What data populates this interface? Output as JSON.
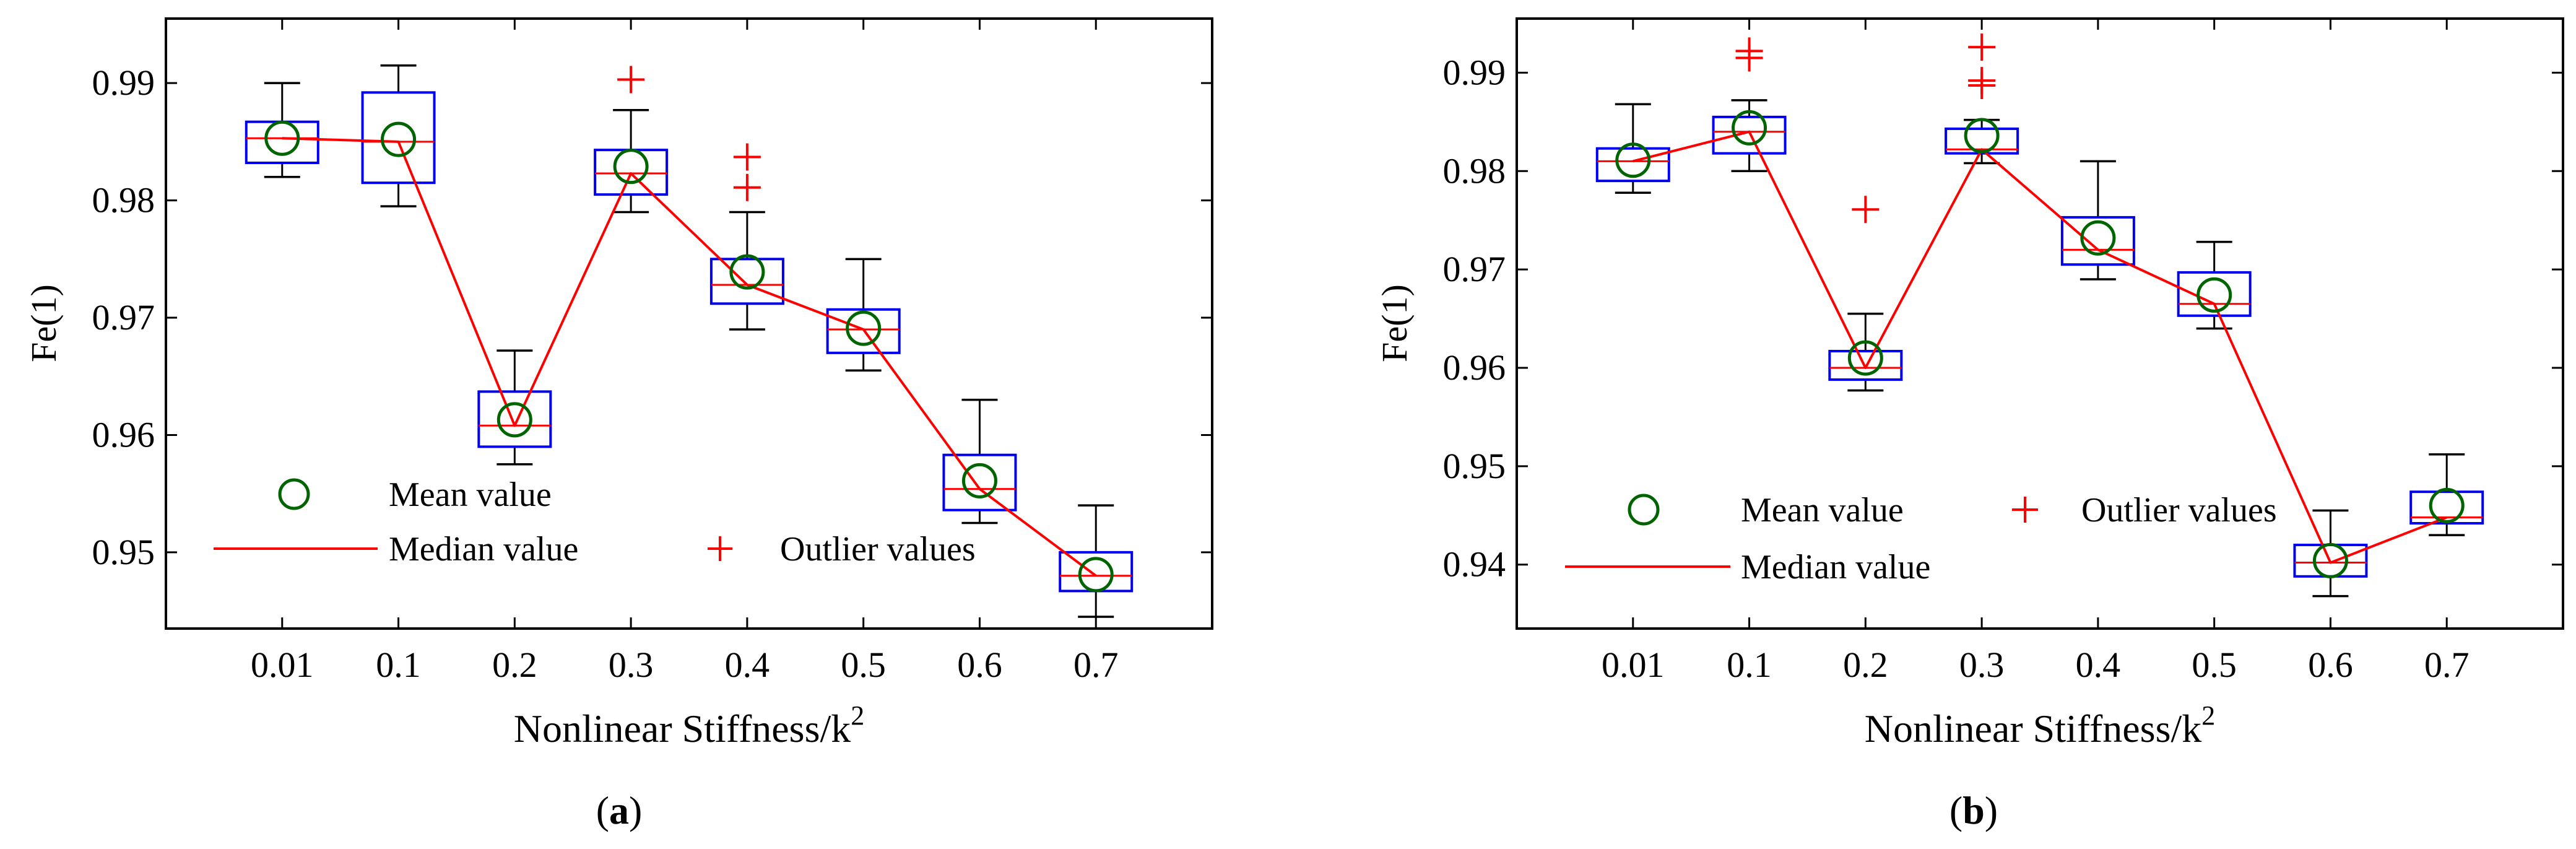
{
  "figure": {
    "panels": [
      {
        "label_open": "(",
        "label_letter": "a",
        "label_close": ")",
        "legend": {
          "mean": "Mean value",
          "median": "Median value",
          "outlier": "Outlier values",
          "placement": "bottom-left"
        }
      },
      {
        "label_open": "(",
        "label_letter": "b",
        "label_close": ")",
        "legend": {
          "mean": "Mean value",
          "median": "Median value",
          "outlier": "Outlier values",
          "placement": "bottom-center"
        }
      }
    ]
  },
  "colors": {
    "box": "#0000ee",
    "whisker": "#000000",
    "median": "#ff0000",
    "mean": "#006400",
    "outlier": "#ff0000",
    "axis": "#000000"
  },
  "chart_data": [
    {
      "type": "box",
      "title": "",
      "xlabel": "Nonlinear Stiffness/k",
      "xlabel_sup": "2",
      "ylabel": "Fe(1)",
      "categories": [
        "0.01",
        "0.1",
        "0.2",
        "0.3",
        "0.4",
        "0.5",
        "0.6",
        "0.7"
      ],
      "ylim": [
        0.9435,
        0.9955
      ],
      "yticks": [
        0.95,
        0.96,
        0.97,
        0.98,
        0.99
      ],
      "ytick_labels": [
        "0.95",
        "0.96",
        "0.97",
        "0.98",
        "0.99"
      ],
      "grid": false,
      "boxes": [
        {
          "whisker_low": 0.982,
          "q1": 0.9832,
          "median": 0.9853,
          "q3": 0.9867,
          "whisker_high": 0.99,
          "mean": 0.9853,
          "outliers": []
        },
        {
          "whisker_low": 0.9795,
          "q1": 0.9815,
          "median": 0.985,
          "q3": 0.9892,
          "whisker_high": 0.9915,
          "mean": 0.9852,
          "outliers": []
        },
        {
          "whisker_low": 0.9575,
          "q1": 0.959,
          "median": 0.9608,
          "q3": 0.9637,
          "whisker_high": 0.9672,
          "mean": 0.9613,
          "outliers": []
        },
        {
          "whisker_low": 0.979,
          "q1": 0.9805,
          "median": 0.9823,
          "q3": 0.9843,
          "whisker_high": 0.9877,
          "mean": 0.9829,
          "outliers": [
            0.9903
          ]
        },
        {
          "whisker_low": 0.969,
          "q1": 0.9712,
          "median": 0.9728,
          "q3": 0.975,
          "whisker_high": 0.979,
          "mean": 0.9739,
          "outliers": [
            0.9811,
            0.9837
          ]
        },
        {
          "whisker_low": 0.9655,
          "q1": 0.967,
          "median": 0.969,
          "q3": 0.9707,
          "whisker_high": 0.975,
          "mean": 0.9691,
          "outliers": []
        },
        {
          "whisker_low": 0.9525,
          "q1": 0.9536,
          "median": 0.9554,
          "q3": 0.9583,
          "whisker_high": 0.963,
          "mean": 0.9561,
          "outliers": []
        },
        {
          "whisker_low": 0.9445,
          "q1": 0.9467,
          "median": 0.948,
          "q3": 0.95,
          "whisker_high": 0.954,
          "mean": 0.9481,
          "outliers": []
        }
      ]
    },
    {
      "type": "box",
      "title": "",
      "xlabel": "Nonlinear Stiffness/k",
      "xlabel_sup": "2",
      "ylabel": "Fe(1)",
      "categories": [
        "0.01",
        "0.1",
        "0.2",
        "0.3",
        "0.4",
        "0.5",
        "0.6",
        "0.7"
      ],
      "ylim": [
        0.9335,
        0.9955
      ],
      "yticks": [
        0.94,
        0.95,
        0.96,
        0.97,
        0.98,
        0.99
      ],
      "ytick_labels": [
        "0.94",
        "0.95",
        "0.96",
        "0.97",
        "0.98",
        "0.99"
      ],
      "grid": false,
      "boxes": [
        {
          "whisker_low": 0.9778,
          "q1": 0.979,
          "median": 0.981,
          "q3": 0.9823,
          "whisker_high": 0.9868,
          "mean": 0.9811,
          "outliers": []
        },
        {
          "whisker_low": 0.98,
          "q1": 0.9818,
          "median": 0.984,
          "q3": 0.9855,
          "whisker_high": 0.9872,
          "mean": 0.9844,
          "outliers": [
            0.9915,
            0.9922
          ]
        },
        {
          "whisker_low": 0.9577,
          "q1": 0.9588,
          "median": 0.96,
          "q3": 0.9617,
          "whisker_high": 0.9655,
          "mean": 0.961,
          "outliers": [
            0.9761
          ]
        },
        {
          "whisker_low": 0.9808,
          "q1": 0.9818,
          "median": 0.9822,
          "q3": 0.9843,
          "whisker_high": 0.9852,
          "mean": 0.9836,
          "outliers": [
            0.9887,
            0.9892,
            0.9926
          ]
        },
        {
          "whisker_low": 0.969,
          "q1": 0.9705,
          "median": 0.972,
          "q3": 0.9753,
          "whisker_high": 0.981,
          "mean": 0.9732,
          "outliers": []
        },
        {
          "whisker_low": 0.964,
          "q1": 0.9653,
          "median": 0.9665,
          "q3": 0.9697,
          "whisker_high": 0.9728,
          "mean": 0.9674,
          "outliers": []
        },
        {
          "whisker_low": 0.9368,
          "q1": 0.9388,
          "median": 0.9402,
          "q3": 0.942,
          "whisker_high": 0.9455,
          "mean": 0.9404,
          "outliers": []
        },
        {
          "whisker_low": 0.943,
          "q1": 0.9442,
          "median": 0.9448,
          "q3": 0.9474,
          "whisker_high": 0.9512,
          "mean": 0.946,
          "outliers": []
        }
      ]
    }
  ]
}
